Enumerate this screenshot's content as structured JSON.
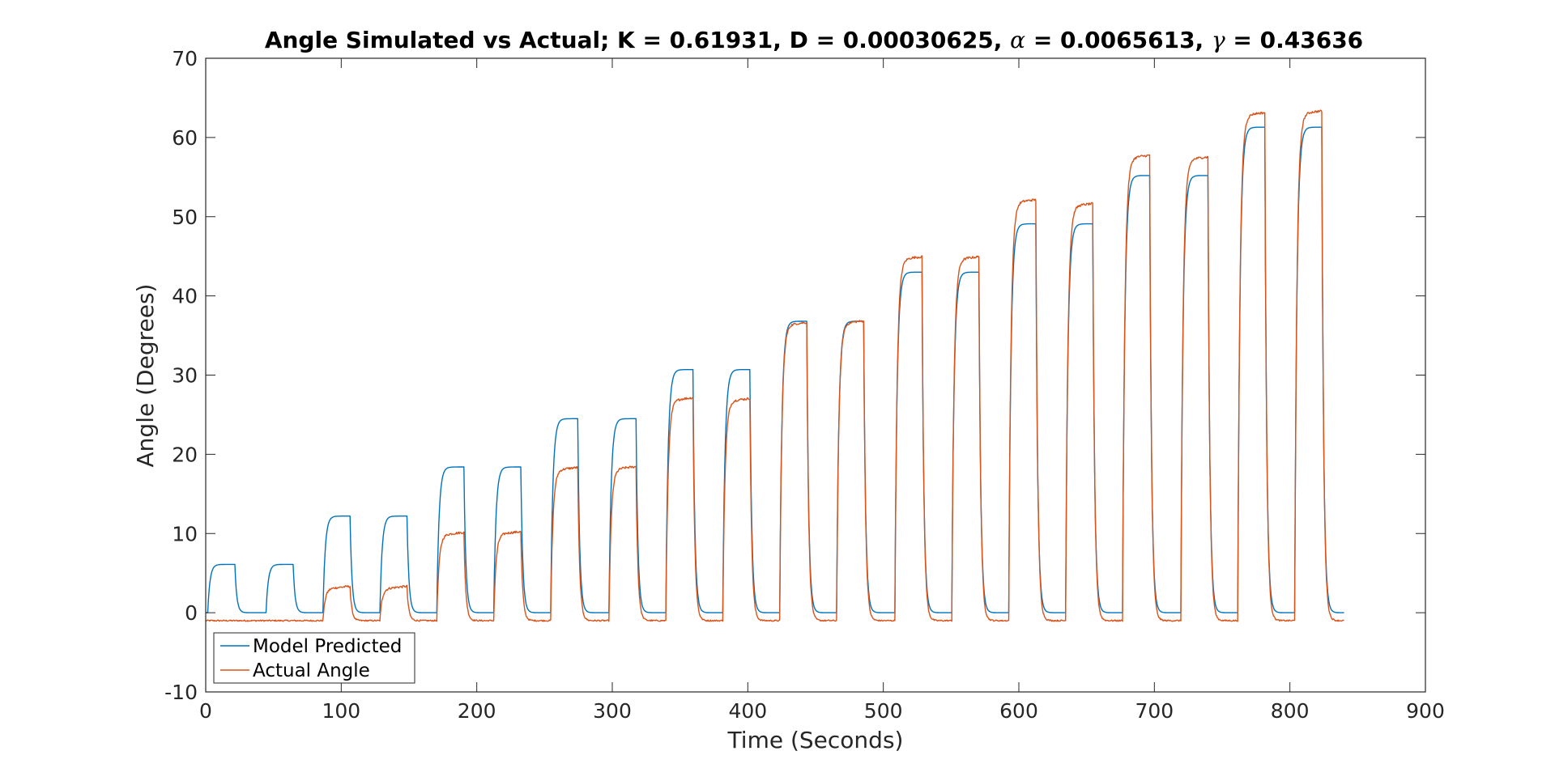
{
  "chart_data": {
    "type": "line",
    "title": {
      "prefix": "Angle Simulated vs Actual; K = 0.61931, D = 0.00030625, ",
      "alpha_symbol": "α",
      "alpha_value": " = 0.0065613, ",
      "gamma_symbol": "γ",
      "gamma_value": " = 0.43636"
    },
    "xlabel": "Time (Seconds)",
    "ylabel": "Angle (Degrees)",
    "xlim": [
      0,
      900
    ],
    "ylim": [
      -10,
      70
    ],
    "xticks": [
      "0",
      "100",
      "200",
      "300",
      "400",
      "500",
      "600",
      "700",
      "800",
      "900"
    ],
    "yticks": [
      "-10",
      "0",
      "10",
      "20",
      "30",
      "40",
      "50",
      "60",
      "70"
    ],
    "grid": false,
    "legend_position": "bottom-left",
    "colors": {
      "model": "#0072BD",
      "actual": "#D95319"
    },
    "series": [
      {
        "name": "Model Predicted",
        "key": "model"
      },
      {
        "name": "Actual Angle",
        "key": "actual"
      }
    ],
    "time_end": 840,
    "baseline": {
      "model": 0,
      "actual": -1
    },
    "pulses": [
      {
        "start": 2,
        "end": 22,
        "model": 6.1,
        "actual": -1.0
      },
      {
        "start": 45,
        "end": 65,
        "model": 6.1,
        "actual": -1.0
      },
      {
        "start": 87,
        "end": 107,
        "model": 12.2,
        "actual": 3.0
      },
      {
        "start": 129,
        "end": 149,
        "model": 12.2,
        "actual": 3.0
      },
      {
        "start": 171,
        "end": 191,
        "model": 18.4,
        "actual": 9.8
      },
      {
        "start": 213,
        "end": 233,
        "model": 18.4,
        "actual": 9.9
      },
      {
        "start": 255,
        "end": 275,
        "model": 24.5,
        "actual": 18.0
      },
      {
        "start": 298,
        "end": 318,
        "model": 24.5,
        "actual": 18.1
      },
      {
        "start": 340,
        "end": 360,
        "model": 30.7,
        "actual": 26.8
      },
      {
        "start": 382,
        "end": 402,
        "model": 30.7,
        "actual": 26.7
      },
      {
        "start": 424,
        "end": 444,
        "model": 36.8,
        "actual": 36.3
      },
      {
        "start": 466,
        "end": 486,
        "model": 36.8,
        "actual": 36.5
      },
      {
        "start": 509,
        "end": 529,
        "model": 43.0,
        "actual": 44.6
      },
      {
        "start": 551,
        "end": 571,
        "model": 43.0,
        "actual": 44.6
      },
      {
        "start": 593,
        "end": 613,
        "model": 49.1,
        "actual": 51.8
      },
      {
        "start": 635,
        "end": 655,
        "model": 49.1,
        "actual": 51.3
      },
      {
        "start": 677,
        "end": 697,
        "model": 55.2,
        "actual": 57.4
      },
      {
        "start": 720,
        "end": 740,
        "model": 55.2,
        "actual": 57.2
      },
      {
        "start": 762,
        "end": 782,
        "model": 61.3,
        "actual": 62.8
      },
      {
        "start": 804,
        "end": 824,
        "model": 61.3,
        "actual": 63.0
      }
    ]
  }
}
